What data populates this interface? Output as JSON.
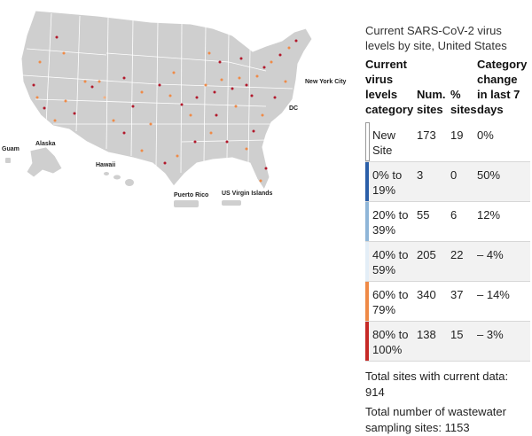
{
  "map": {
    "labels": {
      "guam": "Guam",
      "alaska": "Alaska",
      "hawaii": "Hawaii",
      "puerto_rico": "Puerto Rico",
      "virgin_islands": "US Virgin Islands",
      "nyc": "New York City",
      "dc": "DC"
    },
    "colors": {
      "land": "#cfcfcf",
      "border": "#ffffff",
      "site_dark": "#b2182b",
      "site_orange": "#ef8a47",
      "site_light": "#f4b183"
    }
  },
  "panel": {
    "title": "Current SARS-CoV-2 virus levels by site, United States",
    "headers": {
      "category": "Current virus levels category",
      "num_sites": "Num. sites",
      "pct_sites": "% sites",
      "change": "Category change in last 7 days"
    },
    "rows": [
      {
        "category": "New Site",
        "num": "173",
        "pct": "19",
        "change": "0%",
        "color": "#ffffff"
      },
      {
        "category": "0% to 19%",
        "num": "3",
        "pct": "0",
        "change": "50%",
        "color": "#2b5fa8"
      },
      {
        "category": "20% to 39%",
        "num": "55",
        "pct": "6",
        "change": "12%",
        "color": "#8fb6d8"
      },
      {
        "category": "40% to 59%",
        "num": "205",
        "pct": "22",
        "change": "– 4%",
        "color": "#e3eef7"
      },
      {
        "category": "60% to 79%",
        "num": "340",
        "pct": "37",
        "change": "– 14%",
        "color": "#ef8a47"
      },
      {
        "category": "80% to 100%",
        "num": "138",
        "pct": "15",
        "change": "– 3%",
        "color": "#c62a27"
      }
    ],
    "footer": {
      "total_current": "Total sites with current data: 914",
      "total_sampling": "Total number of wastewater sampling sites: 1153"
    }
  }
}
